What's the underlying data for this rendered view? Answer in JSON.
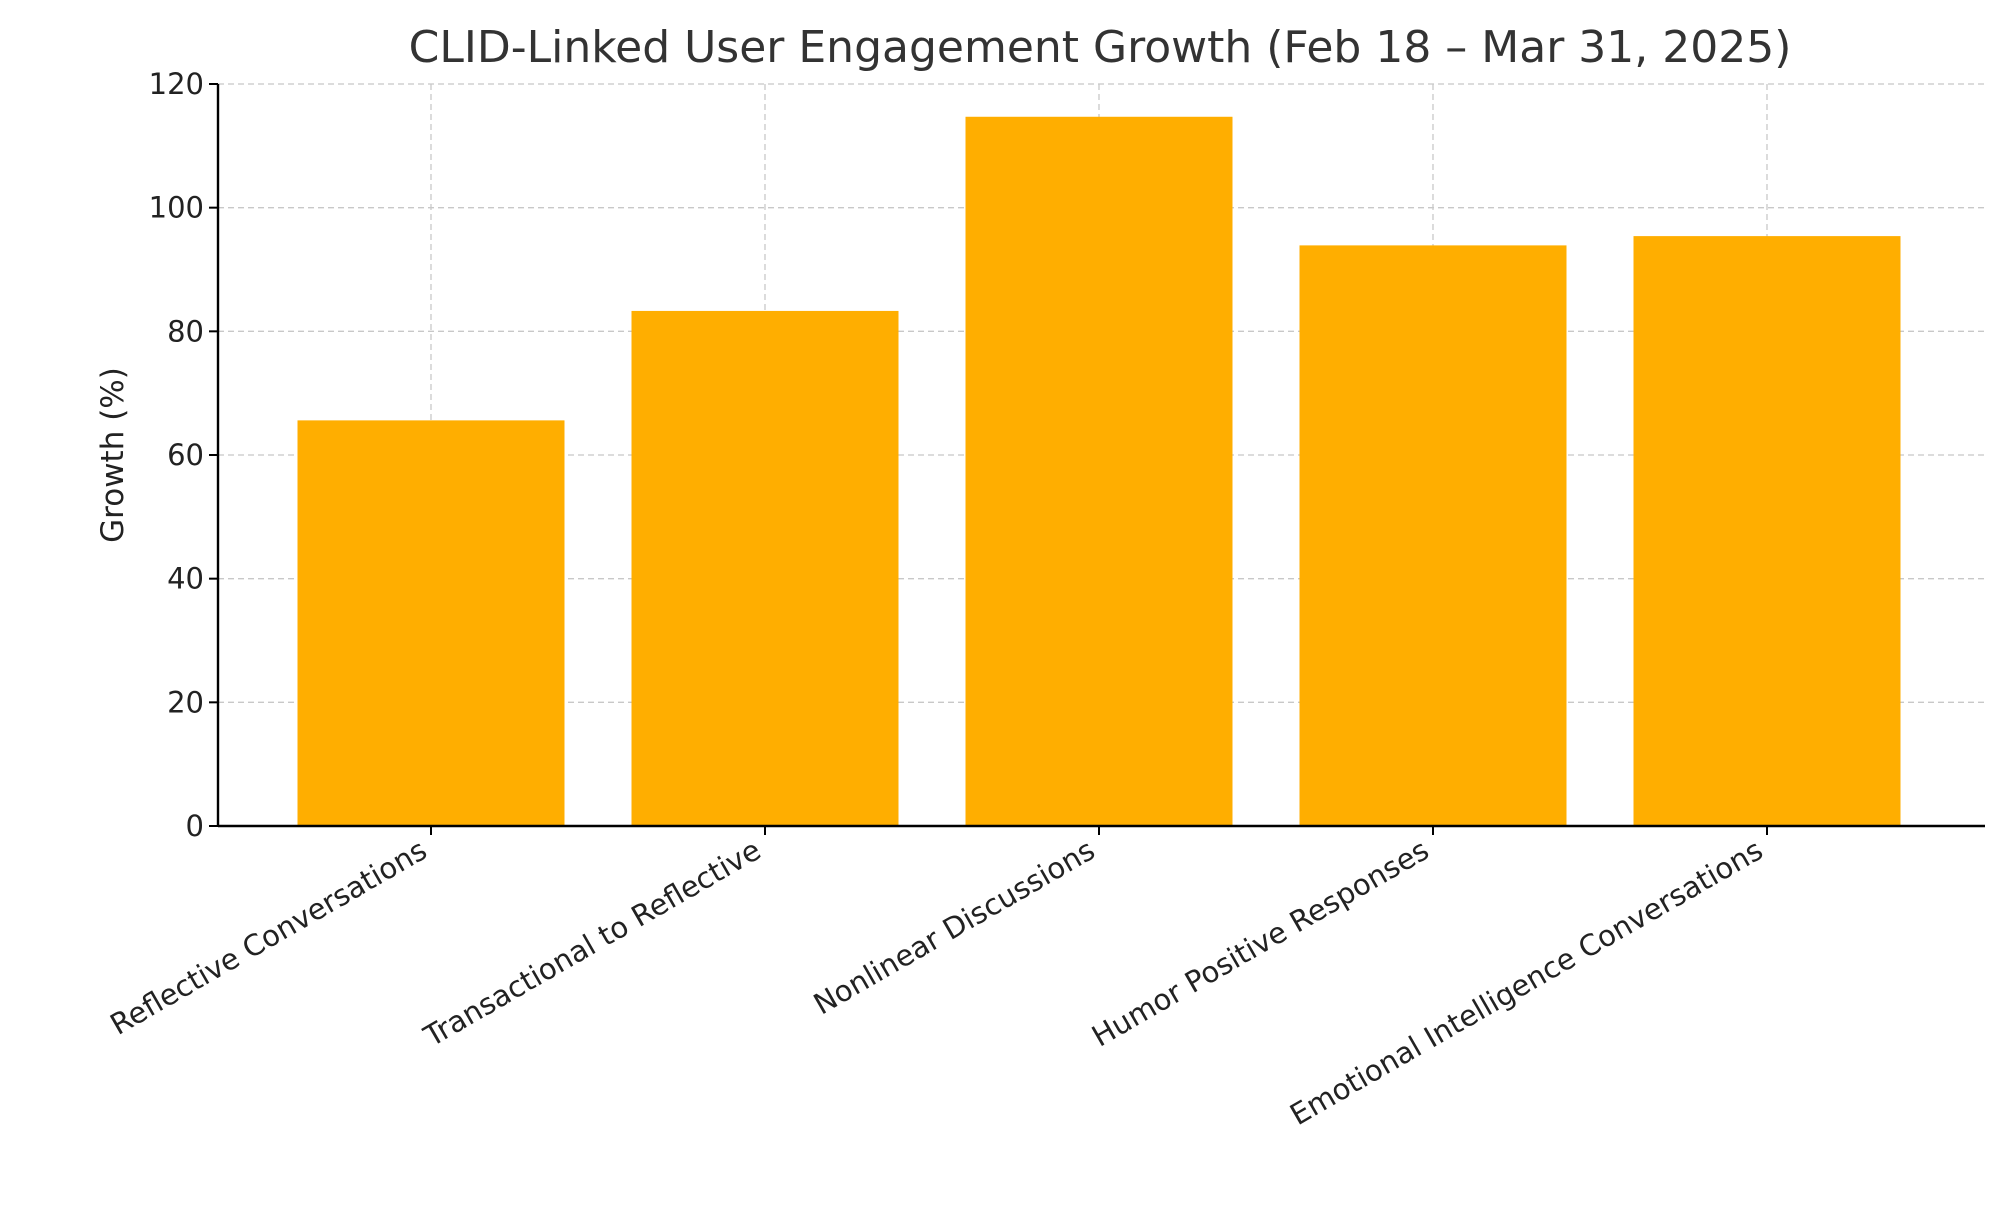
{
  "chart_data": {
    "type": "bar",
    "title": "CLID-Linked User Engagement Growth (Feb 18 – Mar 31, 2025)",
    "xlabel": "",
    "ylabel": "Growth (%)",
    "categories": [
      "Reflective Conversations",
      "Transactional to Reflective",
      "Nonlinear Discussions",
      "Humor Positive Responses",
      "Emotional Intelligence Conversations"
    ],
    "values": [
      65.6,
      83.3,
      114.7,
      93.9,
      95.4
    ],
    "ylim": [
      0,
      120
    ],
    "yticks": [
      0,
      20,
      40,
      60,
      80,
      100,
      120
    ],
    "grid": true,
    "bar_color": "#FFAE00"
  }
}
